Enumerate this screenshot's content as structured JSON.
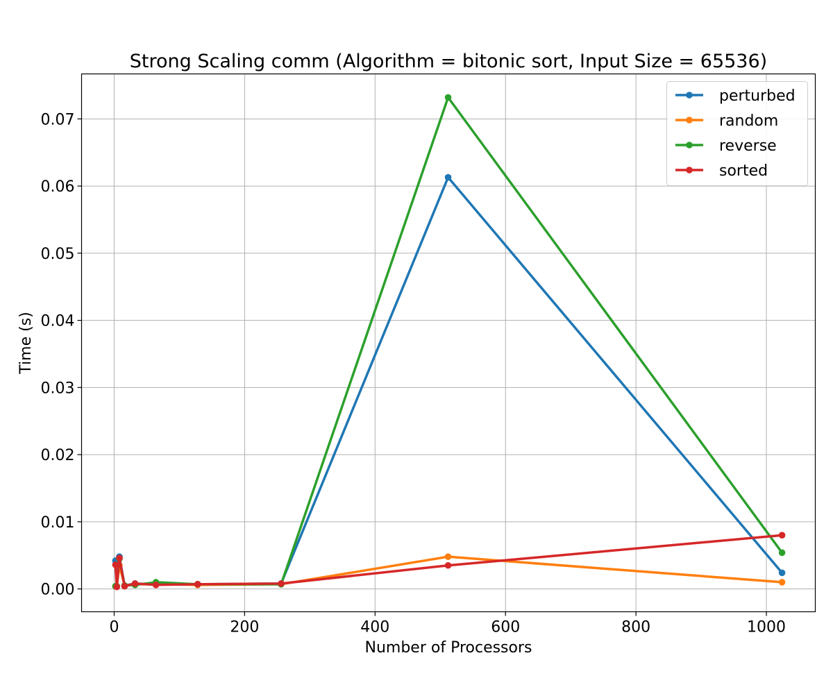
{
  "chart_data": {
    "type": "line",
    "title": "Strong Scaling comm (Algorithm = bitonic sort, Input Size = 65536)",
    "xlabel": "Number of Processors",
    "ylabel": "Time (s)",
    "xlim": [
      -50,
      1075
    ],
    "ylim": [
      -0.0034,
      0.0767
    ],
    "xticks": [
      0,
      200,
      400,
      600,
      800,
      1000
    ],
    "xtick_labels": [
      "0",
      "200",
      "400",
      "600",
      "800",
      "1000"
    ],
    "yticks": [
      0.0,
      0.01,
      0.02,
      0.03,
      0.04,
      0.05,
      0.06,
      0.07
    ],
    "ytick_labels": [
      "0.00",
      "0.01",
      "0.02",
      "0.03",
      "0.04",
      "0.05",
      "0.06",
      "0.07"
    ],
    "grid": true,
    "legend_position": "top-right",
    "x": [
      2,
      4,
      8,
      16,
      32,
      64,
      128,
      256,
      512,
      1024
    ],
    "series": [
      {
        "name": "perturbed",
        "color": "#1f77b4",
        "values": [
          0.0042,
          0.0004,
          0.0048,
          0.0005,
          0.0008,
          0.0007,
          0.0007,
          0.0008,
          0.0613,
          0.0024
        ]
      },
      {
        "name": "random",
        "color": "#ff7f0e",
        "values": [
          0.0004,
          0.0004,
          0.0035,
          0.0005,
          0.0007,
          0.0007,
          0.0006,
          0.0007,
          0.0048,
          0.001
        ]
      },
      {
        "name": "reverse",
        "color": "#2ca02c",
        "values": [
          0.0004,
          0.0004,
          0.0045,
          0.0005,
          0.0006,
          0.001,
          0.0007,
          0.0007,
          0.0732,
          0.0054
        ]
      },
      {
        "name": "sorted",
        "color": "#d62728",
        "values": [
          0.0036,
          0.0003,
          0.0046,
          0.0004,
          0.0008,
          0.0006,
          0.0007,
          0.0008,
          0.0035,
          0.008
        ]
      }
    ]
  }
}
